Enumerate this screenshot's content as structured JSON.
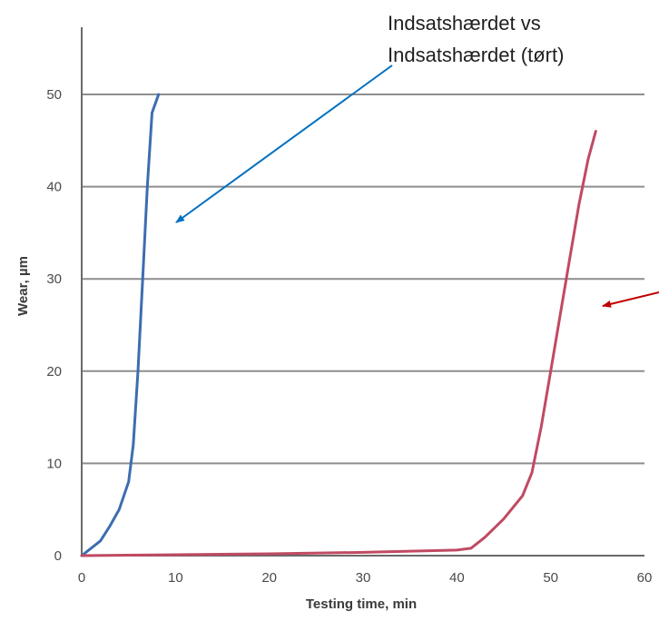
{
  "chart_data": {
    "type": "line",
    "title": "",
    "xlabel": "Testing time, min",
    "ylabel": "Wear, µm",
    "xlim": [
      0,
      60
    ],
    "ylim": [
      0,
      50
    ],
    "grid": "horizontal",
    "x_ticks": [
      "0",
      "10",
      "20",
      "30",
      "40",
      "50",
      "60"
    ],
    "y_ticks": [
      "0",
      "10",
      "20",
      "30",
      "40",
      "50"
    ],
    "series": [
      {
        "color": "#3d6db0",
        "x": [
          0,
          1,
          2,
          3,
          4,
          5,
          5.5,
          6,
          6.5,
          7,
          7.5,
          8.2
        ],
        "y": [
          0,
          0.8,
          1.6,
          3.2,
          5,
          8,
          12,
          20,
          30,
          40,
          48,
          50
        ]
      },
      {
        "color": "#c04a62",
        "x": [
          0,
          10,
          20,
          30,
          40,
          41.5,
          43,
          45,
          47,
          48,
          49,
          50,
          51,
          52,
          53,
          54,
          54.8
        ],
        "y": [
          0,
          0.1,
          0.2,
          0.35,
          0.6,
          0.8,
          2,
          4,
          6.5,
          9,
          14,
          20,
          26,
          32,
          38,
          43,
          46
        ]
      }
    ],
    "annotations": [
      {
        "text_lines": [
          "Indsatshærdet vs",
          "Indsatshærdet (tørt)"
        ],
        "arrow_color": "#0070c0",
        "points_to_series": 0
      },
      {
        "arrow_color": "#c00000",
        "points_to_series": 1
      }
    ]
  }
}
